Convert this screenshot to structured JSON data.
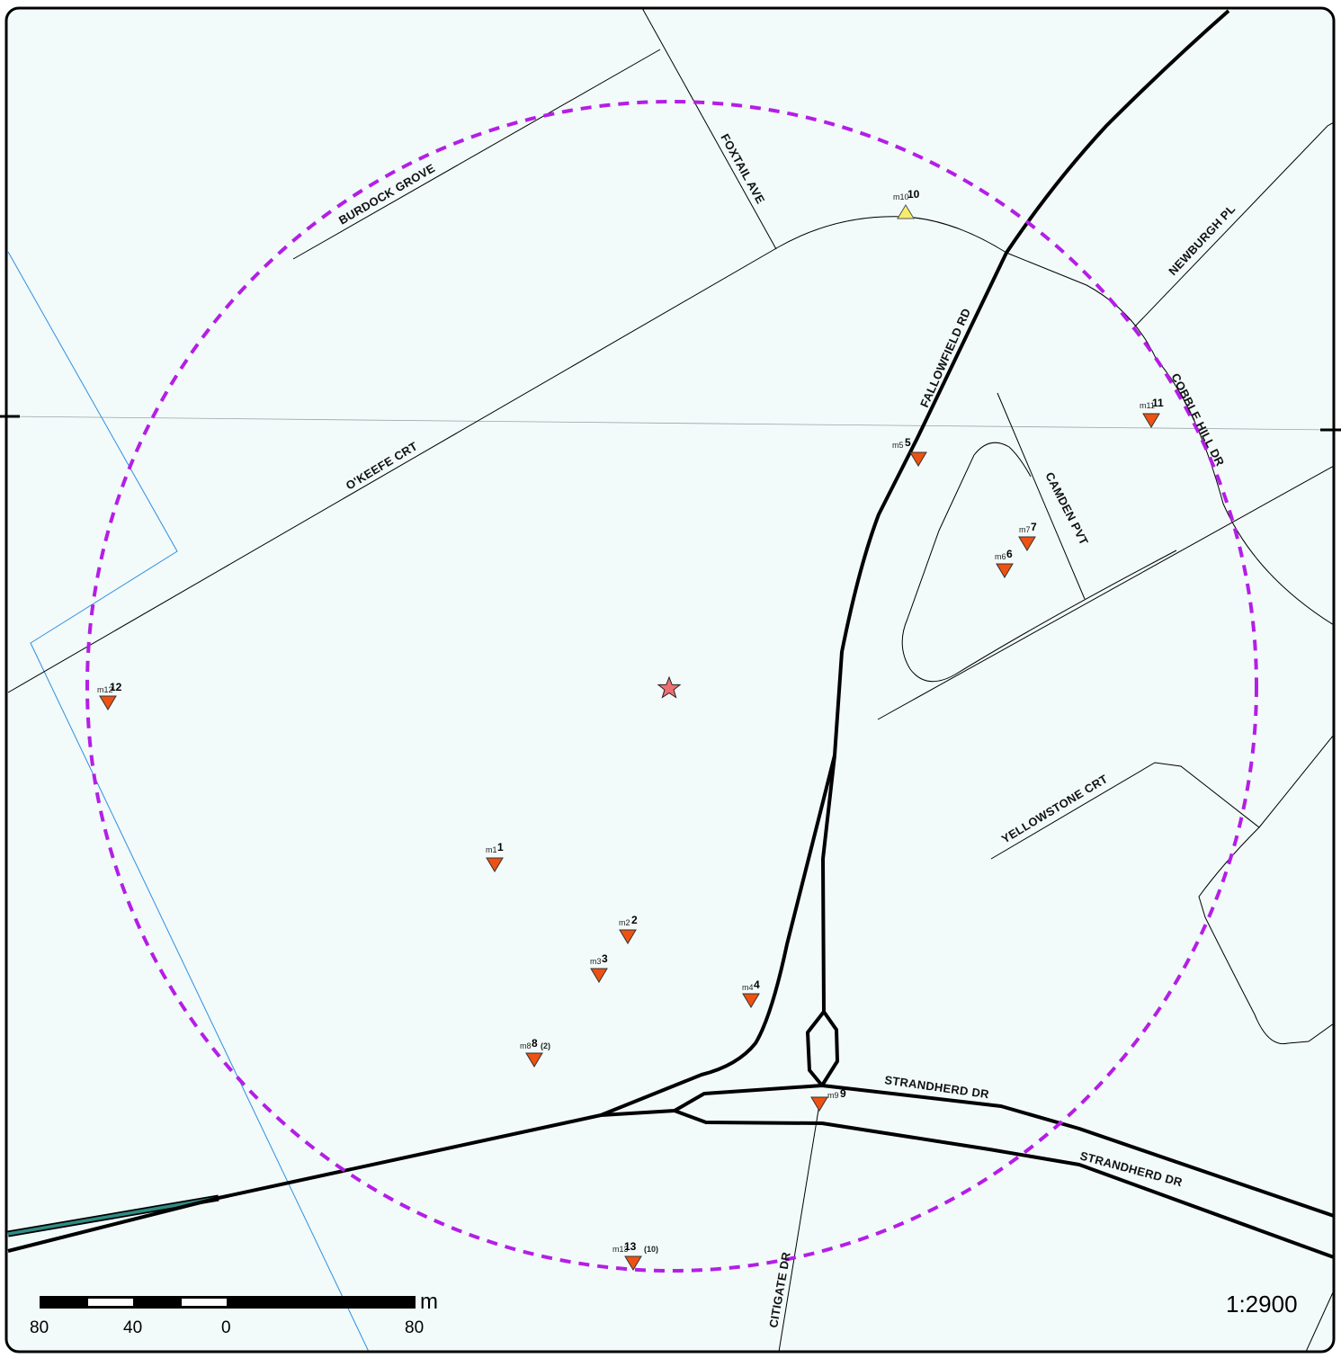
{
  "map": {
    "scale_ratio": "1:2900",
    "scale_bar": {
      "unit": "m",
      "labels": [
        "80",
        "40",
        "0",
        "80"
      ]
    },
    "colors": {
      "background": "#f2fafa",
      "search_radius": "#b41ee6",
      "major_road": "#000000",
      "minor_road": "#000000",
      "boundary": "#2f8fe0",
      "marker_orange": "#ee5212",
      "marker_yellow": "#f5ee6a",
      "center_star": "#ee6f73",
      "railway": "#2e8c84"
    },
    "center_marker": {
      "icon": "star-icon"
    },
    "roads": {
      "burdock": "BURDOCK GROVE",
      "foxtail": "FOXTAIL AVE",
      "newburgh": "NEWBURGH PL",
      "fallowfield": "FALLOWFIELD RD",
      "cobble": "COBBLE HILL DR",
      "okeefe": "O'KEEFE CRT",
      "camden": "CAMDEN PVT",
      "yellowstone": "YELLOWSTONE CRT",
      "strandherd1": "STRANDHERD DR",
      "strandherd2": "STRANDHERD DR",
      "citigate": "CITIGATE DR"
    },
    "markers": {
      "m1": {
        "small": "m1",
        "num": "1",
        "type": "down"
      },
      "m2": {
        "small": "m2",
        "num": "2",
        "type": "down"
      },
      "m3": {
        "small": "m3",
        "num": "3",
        "type": "down"
      },
      "m4": {
        "small": "m4",
        "num": "4",
        "type": "down"
      },
      "m5": {
        "small": "m5",
        "num": "5",
        "type": "down"
      },
      "m6": {
        "small": "m6",
        "num": "6",
        "type": "down"
      },
      "m7": {
        "small": "m7",
        "num": "7",
        "type": "down"
      },
      "m8": {
        "small": "m8",
        "num": "8",
        "extra": "(2)",
        "type": "down"
      },
      "m9": {
        "small": "m9",
        "num": "9",
        "type": "down"
      },
      "m10": {
        "small": "m10",
        "num": "10",
        "type": "up"
      },
      "m11": {
        "small": "m11",
        "num": "11",
        "type": "down"
      },
      "m12": {
        "small": "m12",
        "num": "12",
        "type": "down"
      },
      "m13": {
        "small": "m13",
        "num": "13",
        "extra": "(10)",
        "type": "down"
      }
    }
  }
}
